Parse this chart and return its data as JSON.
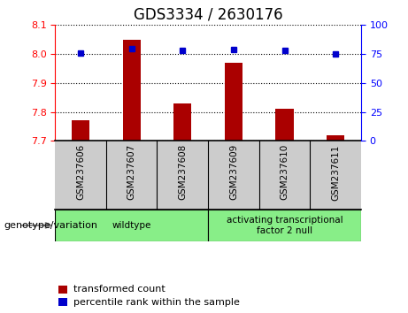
{
  "title": "GDS3334 / 2630176",
  "samples": [
    "GSM237606",
    "GSM237607",
    "GSM237608",
    "GSM237609",
    "GSM237610",
    "GSM237611"
  ],
  "transformed_counts": [
    7.77,
    8.05,
    7.83,
    7.97,
    7.81,
    7.72
  ],
  "percentile_ranks": [
    76,
    80,
    78,
    79,
    78,
    75
  ],
  "ylim_left": [
    7.7,
    8.1
  ],
  "ylim_right": [
    0,
    100
  ],
  "yticks_left": [
    7.7,
    7.8,
    7.9,
    8.0,
    8.1
  ],
  "yticks_right": [
    0,
    25,
    50,
    75,
    100
  ],
  "bar_bottom": 7.7,
  "bar_color": "#aa0000",
  "dot_color": "#0000cc",
  "bg_plot": "#ffffff",
  "bg_label": "#cccccc",
  "groups": [
    {
      "label": "wildtype",
      "start": 0,
      "end": 2,
      "color": "#88ee88"
    },
    {
      "label": "activating transcriptional\nfactor 2 null",
      "start": 3,
      "end": 5,
      "color": "#88ee88"
    }
  ],
  "legend_items": [
    {
      "color": "#aa0000",
      "label": "transformed count"
    },
    {
      "color": "#0000cc",
      "label": "percentile rank within the sample"
    }
  ],
  "xlabel": "genotype/variation",
  "font_size_title": 12,
  "font_size_ticks": 8,
  "font_size_sample": 7.5,
  "font_size_legend": 8
}
